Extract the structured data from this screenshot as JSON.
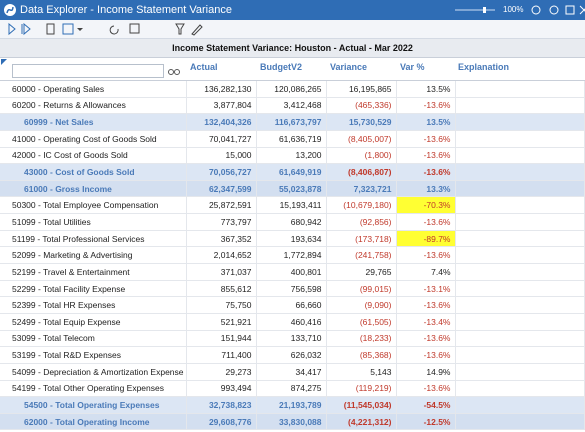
{
  "window": {
    "title": "Data Explorer - Income Statement Variance",
    "zoom": "100%"
  },
  "report": {
    "title": "Income Statement Variance:  Houston - Actual - Mar 2022"
  },
  "table": {
    "columns": [
      "Actual",
      "BudgetV2",
      "Variance",
      "Var %",
      "Explanation"
    ],
    "rows": [
      {
        "cells": [
          "60000 - Operating Sales",
          "136,282,130",
          "120,086,265",
          "16,195,865",
          "13.5%"
        ]
      },
      {
        "cells": [
          "60200 - Returns & Allowances",
          "3,877,804",
          "3,412,468",
          "(465,336)",
          "-13.6%"
        ]
      },
      {
        "cells": [
          "60999 - Net Sales",
          "132,404,326",
          "116,673,797",
          "15,730,529",
          "13.5%"
        ],
        "style": "subtotal"
      },
      {
        "cells": [
          "41000 - Operating Cost of Goods Sold",
          "70,041,727",
          "61,636,719",
          "(8,405,007)",
          "-13.6%"
        ]
      },
      {
        "cells": [
          "42000 - IC Cost of Goods Sold",
          "15,000",
          "13,200",
          "(1,800)",
          "-13.6%"
        ]
      },
      {
        "cells": [
          "43000 - Cost of Goods Sold",
          "70,056,727",
          "61,649,919",
          "(8,406,807)",
          "-13.6%"
        ],
        "style": "subtotal"
      },
      {
        "cells": [
          "61000 - Gross Income",
          "62,347,599",
          "55,023,878",
          "7,323,721",
          "13.3%"
        ],
        "style": "total"
      },
      {
        "cells": [
          "50300 - Total Employee Compensation",
          "25,872,591",
          "15,193,411",
          "(10,679,180)",
          "-70.3%"
        ],
        "highlight": true
      },
      {
        "cells": [
          "51099 - Total Utilities",
          "773,797",
          "680,942",
          "(92,856)",
          "-13.6%"
        ]
      },
      {
        "cells": [
          "51199 - Total Professional Services",
          "367,352",
          "193,634",
          "(173,718)",
          "-89.7%"
        ],
        "highlight": true
      },
      {
        "cells": [
          "52099 - Marketing & Advertising",
          "2,014,652",
          "1,772,894",
          "(241,758)",
          "-13.6%"
        ]
      },
      {
        "cells": [
          "52199 - Travel & Entertainment",
          "371,037",
          "400,801",
          "29,765",
          "7.4%"
        ]
      },
      {
        "cells": [
          "52299 - Total Facility Expense",
          "855,612",
          "756,598",
          "(99,015)",
          "-13.1%"
        ]
      },
      {
        "cells": [
          "52399 - Total HR Expenses",
          "75,750",
          "66,660",
          "(9,090)",
          "-13.6%"
        ]
      },
      {
        "cells": [
          "52499 - Total Equip Expense",
          "521,921",
          "460,416",
          "(61,505)",
          "-13.4%"
        ]
      },
      {
        "cells": [
          "53099 - Total Telecom",
          "151,944",
          "133,710",
          "(18,233)",
          "-13.6%"
        ]
      },
      {
        "cells": [
          "53199 - Total R&D Expenses",
          "711,400",
          "626,032",
          "(85,368)",
          "-13.6%"
        ]
      },
      {
        "cells": [
          "54099 - Depreciation & Amortization Expense",
          "29,273",
          "34,417",
          "5,143",
          "14.9%"
        ]
      },
      {
        "cells": [
          "54199 - Total Other Operating Expenses",
          "993,494",
          "874,275",
          "(119,219)",
          "-13.6%"
        ]
      },
      {
        "cells": [
          "54500 - Total Operating Expenses",
          "32,738,823",
          "21,193,789",
          "(11,545,034)",
          "-54.5%"
        ],
        "style": "subtotal"
      },
      {
        "cells": [
          "62000 - Total Operating Income",
          "29,608,776",
          "33,830,088",
          "(4,221,312)",
          "-12.5%"
        ],
        "style": "total"
      }
    ]
  }
}
